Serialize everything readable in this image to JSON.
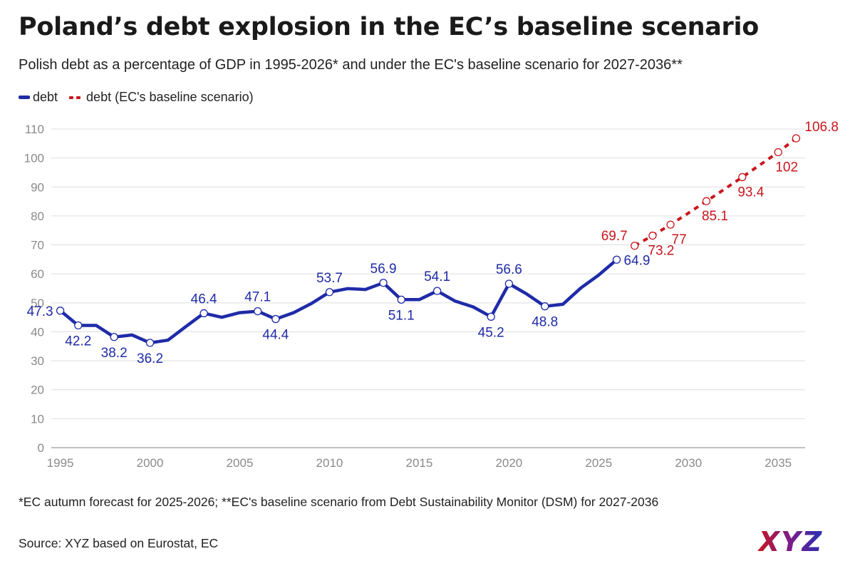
{
  "title": "Poland’s debt explosion in the EC’s baseline scenario",
  "subtitle": "Polish debt as a percentage of GDP in 1995-2026* and under the EC's baseline scenario for 2027-2036**",
  "legend": {
    "series1": "debt",
    "series2": "debt (EC's baseline scenario)"
  },
  "footnote": "*EC autumn forecast for 2025-2026; **EC's baseline scenario from Debt Sustainability Monitor (DSM) for 2027-2036",
  "source": "Source: XYZ based on Eurostat, EC",
  "logo_text": "XYZ",
  "colors": {
    "debt": "#1f2ba8",
    "forecast": "#c8161d",
    "grid": "#dddddd",
    "axis_text": "#8a8a8a"
  },
  "chart_data": {
    "type": "line",
    "title": "Poland’s debt explosion in the EC’s baseline scenario",
    "xlabel": "",
    "ylabel": "",
    "xlim": [
      1994.5,
      2036.5
    ],
    "ylim": [
      0,
      110
    ],
    "yticks": [
      0,
      10,
      20,
      30,
      40,
      50,
      60,
      70,
      80,
      90,
      100,
      110
    ],
    "xticks": [
      1995,
      2000,
      2005,
      2010,
      2015,
      2020,
      2025,
      2030,
      2035
    ],
    "grid": true,
    "legend_position": "top-left",
    "series": [
      {
        "name": "debt",
        "style": "solid",
        "x": [
          1995,
          1996,
          1997,
          1998,
          1999,
          2000,
          2001,
          2002,
          2003,
          2004,
          2005,
          2006,
          2007,
          2008,
          2009,
          2010,
          2011,
          2012,
          2013,
          2014,
          2015,
          2016,
          2017,
          2018,
          2019,
          2020,
          2021,
          2022,
          2023,
          2024,
          2025,
          2026
        ],
        "values": [
          47.3,
          42.2,
          42.2,
          38.2,
          38.9,
          36.2,
          37.1,
          41.8,
          46.4,
          45.0,
          46.6,
          47.1,
          44.4,
          46.6,
          49.8,
          53.7,
          54.9,
          54.6,
          56.9,
          51.1,
          51.1,
          54.1,
          50.6,
          48.6,
          45.2,
          56.6,
          53.0,
          48.8,
          49.5,
          55.1,
          59.6,
          64.9
        ],
        "labels": [
          {
            "x": 1995,
            "text": "47.3",
            "pos": "left"
          },
          {
            "x": 1996,
            "text": "42.2",
            "pos": "below"
          },
          {
            "x": 1998,
            "text": "38.2",
            "pos": "below"
          },
          {
            "x": 2000,
            "text": "36.2",
            "pos": "below"
          },
          {
            "x": 2003,
            "text": "46.4",
            "pos": "above"
          },
          {
            "x": 2006,
            "text": "47.1",
            "pos": "above"
          },
          {
            "x": 2007,
            "text": "44.4",
            "pos": "below"
          },
          {
            "x": 2010,
            "text": "53.7",
            "pos": "above"
          },
          {
            "x": 2013,
            "text": "56.9",
            "pos": "above"
          },
          {
            "x": 2014,
            "text": "51.1",
            "pos": "below"
          },
          {
            "x": 2016,
            "text": "54.1",
            "pos": "above"
          },
          {
            "x": 2019,
            "text": "45.2",
            "pos": "below"
          },
          {
            "x": 2020,
            "text": "56.6",
            "pos": "above"
          },
          {
            "x": 2022,
            "text": "48.8",
            "pos": "below"
          },
          {
            "x": 2026,
            "text": "64.9",
            "pos": "right"
          }
        ]
      },
      {
        "name": "debt (EC's baseline scenario)",
        "style": "dashed",
        "x": [
          2027,
          2028,
          2029,
          2030,
          2031,
          2032,
          2033,
          2034,
          2035,
          2036
        ],
        "values": [
          69.7,
          73.2,
          77.0,
          81.0,
          85.1,
          89.2,
          93.4,
          97.7,
          102.0,
          106.8
        ],
        "labels": [
          {
            "x": 2027,
            "text": "69.7",
            "pos": "left"
          },
          {
            "x": 2028,
            "text": "73.2",
            "pos": "below"
          },
          {
            "x": 2029,
            "text": "77",
            "pos": "below"
          },
          {
            "x": 2031,
            "text": "85.1",
            "pos": "below"
          },
          {
            "x": 2033,
            "text": "93.4",
            "pos": "below"
          },
          {
            "x": 2035,
            "text": "102",
            "pos": "below"
          },
          {
            "x": 2036,
            "text": "106.8",
            "pos": "right"
          }
        ]
      }
    ]
  }
}
